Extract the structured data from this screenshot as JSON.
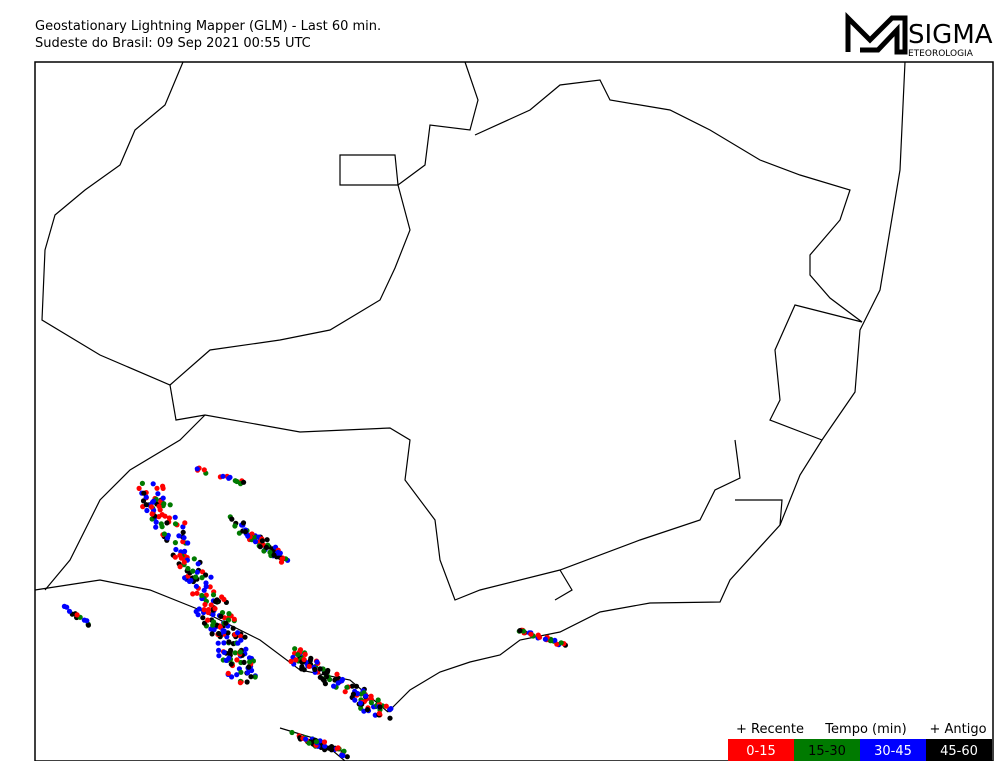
{
  "header": {
    "title": "Geostationary Lightning Mapper (GLM) - Last 60 min.",
    "subtitle": "Sudeste do Brasil:  09 Sep 2021 00:55 UTC"
  },
  "logo": {
    "name": "SIGMA",
    "tagline": "ETEOROLOGIA"
  },
  "legend": {
    "left": "+ Recente",
    "center": "Tempo (min)",
    "right": "+ Antigo",
    "bins": [
      {
        "label": "0-15",
        "color": "#ff0000"
      },
      {
        "label": "15-30",
        "color": "#007a00"
      },
      {
        "label": "30-45",
        "color": "#0000ff"
      },
      {
        "label": "45-60",
        "color": "#000000"
      }
    ]
  }
}
